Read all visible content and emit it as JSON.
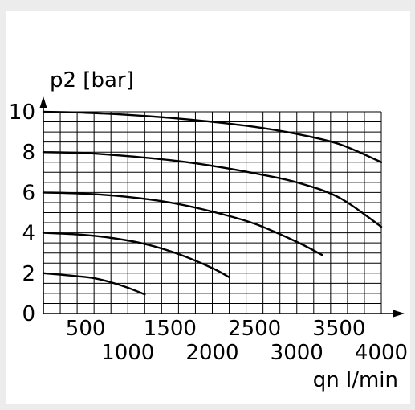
{
  "chart_data": {
    "type": "line",
    "title": "",
    "ylabel": "p2 [bar]",
    "xlabel": "qn l/min",
    "xlim": [
      0,
      4000
    ],
    "ylim": [
      0,
      10
    ],
    "grid": true,
    "x_tick_labels": [
      "500",
      "1000",
      "1500",
      "2000",
      "2500",
      "3000",
      "3500",
      "4000"
    ],
    "y_tick_labels": [
      "0",
      "2",
      "4",
      "6",
      "8",
      "10"
    ],
    "series": [
      {
        "x": [
          0,
          200,
          400,
          600,
          800,
          1000,
          1200
        ],
        "y": [
          2.0,
          1.93,
          1.85,
          1.75,
          1.55,
          1.28,
          0.95
        ]
      },
      {
        "x": [
          0,
          400,
          800,
          1200,
          1600,
          2000,
          2200
        ],
        "y": [
          4.0,
          3.92,
          3.75,
          3.45,
          2.95,
          2.25,
          1.8
        ]
      },
      {
        "x": [
          0,
          500,
          1000,
          1500,
          2000,
          2500,
          3000,
          3300
        ],
        "y": [
          6.0,
          5.94,
          5.78,
          5.5,
          5.05,
          4.45,
          3.55,
          2.9
        ]
      },
      {
        "x": [
          0,
          500,
          1000,
          1500,
          2000,
          2500,
          3000,
          3500,
          4000
        ],
        "y": [
          8.0,
          7.95,
          7.8,
          7.6,
          7.32,
          6.95,
          6.5,
          5.75,
          4.3
        ]
      },
      {
        "x": [
          0,
          500,
          1000,
          1500,
          2000,
          2500,
          3000,
          3500,
          4000
        ],
        "y": [
          10.0,
          9.95,
          9.85,
          9.7,
          9.5,
          9.25,
          8.9,
          8.4,
          7.5
        ]
      }
    ]
  }
}
